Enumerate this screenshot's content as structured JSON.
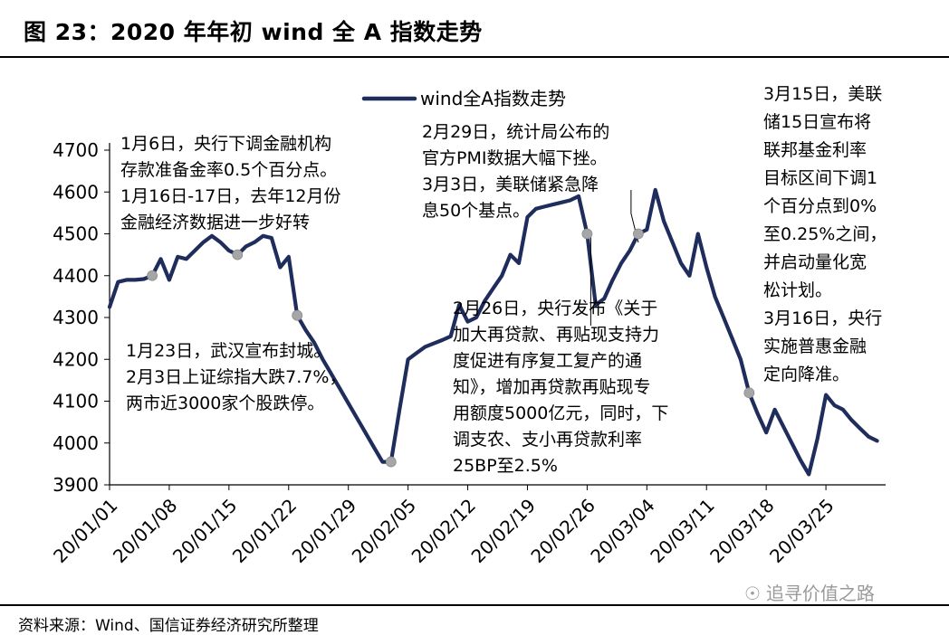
{
  "title": "图 23：2020 年年初 wind 全 A 指数走势",
  "source": "资料来源：Wind、国信证券经济研究所整理",
  "watermark": "追寻价值之路",
  "watermark_icon": "wechat-icon",
  "colors": {
    "line": "#1f2d5c",
    "marker": "#a6a6a6",
    "axis": "#000000"
  },
  "chart_data": {
    "type": "line",
    "title": "",
    "xlabel": "",
    "ylabel": "",
    "ylim": [
      3900,
      4700
    ],
    "yticks": [
      3900,
      4000,
      4100,
      4200,
      4300,
      4400,
      4500,
      4600,
      4700
    ],
    "xticks": [
      "20/01/01",
      "20/01/08",
      "20/01/15",
      "20/01/22",
      "20/01/29",
      "20/02/05",
      "20/02/12",
      "20/02/19",
      "20/02/26",
      "20/03/04",
      "20/03/11",
      "20/03/18",
      "20/03/25"
    ],
    "legend": {
      "position": "top-center",
      "label": "wind全A指数走势"
    },
    "grid": false,
    "series": [
      {
        "name": "wind全A指数走势",
        "points": [
          [
            "2020-01-01",
            4325
          ],
          [
            "2020-01-02",
            4385
          ],
          [
            "2020-01-03",
            4390
          ],
          [
            "2020-01-04",
            4390
          ],
          [
            "2020-01-05",
            4392
          ],
          [
            "2020-01-06",
            4400
          ],
          [
            "2020-01-07",
            4440
          ],
          [
            "2020-01-08",
            4390
          ],
          [
            "2020-01-09",
            4445
          ],
          [
            "2020-01-10",
            4440
          ],
          [
            "2020-01-11",
            4460
          ],
          [
            "2020-01-12",
            4480
          ],
          [
            "2020-01-13",
            4495
          ],
          [
            "2020-01-14",
            4480
          ],
          [
            "2020-01-15",
            4460
          ],
          [
            "2020-01-16",
            4450
          ],
          [
            "2020-01-17",
            4470
          ],
          [
            "2020-01-18",
            4480
          ],
          [
            "2020-01-19",
            4495
          ],
          [
            "2020-01-20",
            4490
          ],
          [
            "2020-01-21",
            4420
          ],
          [
            "2020-01-22",
            4445
          ],
          [
            "2020-01-23",
            4305
          ],
          [
            "2020-01-24",
            4270
          ],
          [
            "2020-01-25",
            4240
          ],
          [
            "2020-01-26",
            4200
          ],
          [
            "2020-01-27",
            4165
          ],
          [
            "2020-01-28",
            4130
          ],
          [
            "2020-01-29",
            4095
          ],
          [
            "2020-01-30",
            4060
          ],
          [
            "2020-01-31",
            4025
          ],
          [
            "2020-02-01",
            3990
          ],
          [
            "2020-02-02",
            3955
          ],
          [
            "2020-02-03",
            3955
          ],
          [
            "2020-02-04",
            4080
          ],
          [
            "2020-02-05",
            4200
          ],
          [
            "2020-02-06",
            4215
          ],
          [
            "2020-02-07",
            4230
          ],
          [
            "2020-02-08",
            4238
          ],
          [
            "2020-02-09",
            4246
          ],
          [
            "2020-02-10",
            4255
          ],
          [
            "2020-02-11",
            4330
          ],
          [
            "2020-02-12",
            4290
          ],
          [
            "2020-02-13",
            4300
          ],
          [
            "2020-02-14",
            4340
          ],
          [
            "2020-02-15",
            4370
          ],
          [
            "2020-02-16",
            4400
          ],
          [
            "2020-02-17",
            4450
          ],
          [
            "2020-02-18",
            4430
          ],
          [
            "2020-02-19",
            4540
          ],
          [
            "2020-02-20",
            4560
          ],
          [
            "2020-02-21",
            4565
          ],
          [
            "2020-02-22",
            4570
          ],
          [
            "2020-02-23",
            4575
          ],
          [
            "2020-02-24",
            4580
          ],
          [
            "2020-02-25",
            4590
          ],
          [
            "2020-02-26",
            4500
          ],
          [
            "2020-02-27",
            4330
          ],
          [
            "2020-02-28",
            4345
          ],
          [
            "2020-02-29",
            4390
          ],
          [
            "2020-03-01",
            4430
          ],
          [
            "2020-03-02",
            4460
          ],
          [
            "2020-03-03",
            4500
          ],
          [
            "2020-03-04",
            4510
          ],
          [
            "2020-03-05",
            4605
          ],
          [
            "2020-03-06",
            4530
          ],
          [
            "2020-03-07",
            4480
          ],
          [
            "2020-03-08",
            4430
          ],
          [
            "2020-03-09",
            4400
          ],
          [
            "2020-03-10",
            4500
          ],
          [
            "2020-03-11",
            4420
          ],
          [
            "2020-03-12",
            4350
          ],
          [
            "2020-03-13",
            4300
          ],
          [
            "2020-03-14",
            4250
          ],
          [
            "2020-03-15",
            4200
          ],
          [
            "2020-03-16",
            4120
          ],
          [
            "2020-03-17",
            4070
          ],
          [
            "2020-03-18",
            4025
          ],
          [
            "2020-03-19",
            4080
          ],
          [
            "2020-03-20",
            4040
          ],
          [
            "2020-03-21",
            4000
          ],
          [
            "2020-03-22",
            3960
          ],
          [
            "2020-03-23",
            3925
          ],
          [
            "2020-03-24",
            4010
          ],
          [
            "2020-03-25",
            4115
          ],
          [
            "2020-03-26",
            4090
          ],
          [
            "2020-03-27",
            4080
          ],
          [
            "2020-03-28",
            4055
          ],
          [
            "2020-03-29",
            4035
          ],
          [
            "2020-03-30",
            4015
          ],
          [
            "2020-03-31",
            4005
          ]
        ]
      }
    ],
    "markers": [
      "2020-01-06",
      "2020-01-16",
      "2020-01-23",
      "2020-02-03",
      "2020-02-26",
      "2020-03-03",
      "2020-03-16"
    ],
    "annotations": [
      {
        "lines": [
          "1月6日，央行下调金融机构",
          "存款准备金率0.5个百分点。",
          "1月16日-17日，去年12月份",
          "金融经济数据进一步好转"
        ]
      },
      {
        "lines": [
          "1月23日，武汉宣布封城。",
          "2月3日上证综指大跌7.7%，",
          "两市近3000家个股跌停。"
        ]
      },
      {
        "lines": [
          "2月29日，统计局公布的",
          "官方PMI数据大幅下挫。",
          "3月3日，美联储紧急降",
          "息50个基点。"
        ]
      },
      {
        "lines": [
          "2月26日，央行发布《关于",
          "加大再贷款、再贴现支持力",
          "度促进有序复工复产的通",
          "知》，增加再贷款再贴现专",
          "用额度5000亿元，同时，下",
          "调支农、支小再贷款利率",
          "25BP至2.5%"
        ]
      },
      {
        "lines": [
          "3月15日，美联",
          "储15日宣布将",
          "联邦基金利率",
          "目标区间下调1",
          "个百分点到0%",
          "至0.25%之间，",
          "并启动量化宽",
          "松计划。",
          "3月16日，央行",
          "实施普惠金融",
          "定向降准。"
        ]
      }
    ]
  }
}
